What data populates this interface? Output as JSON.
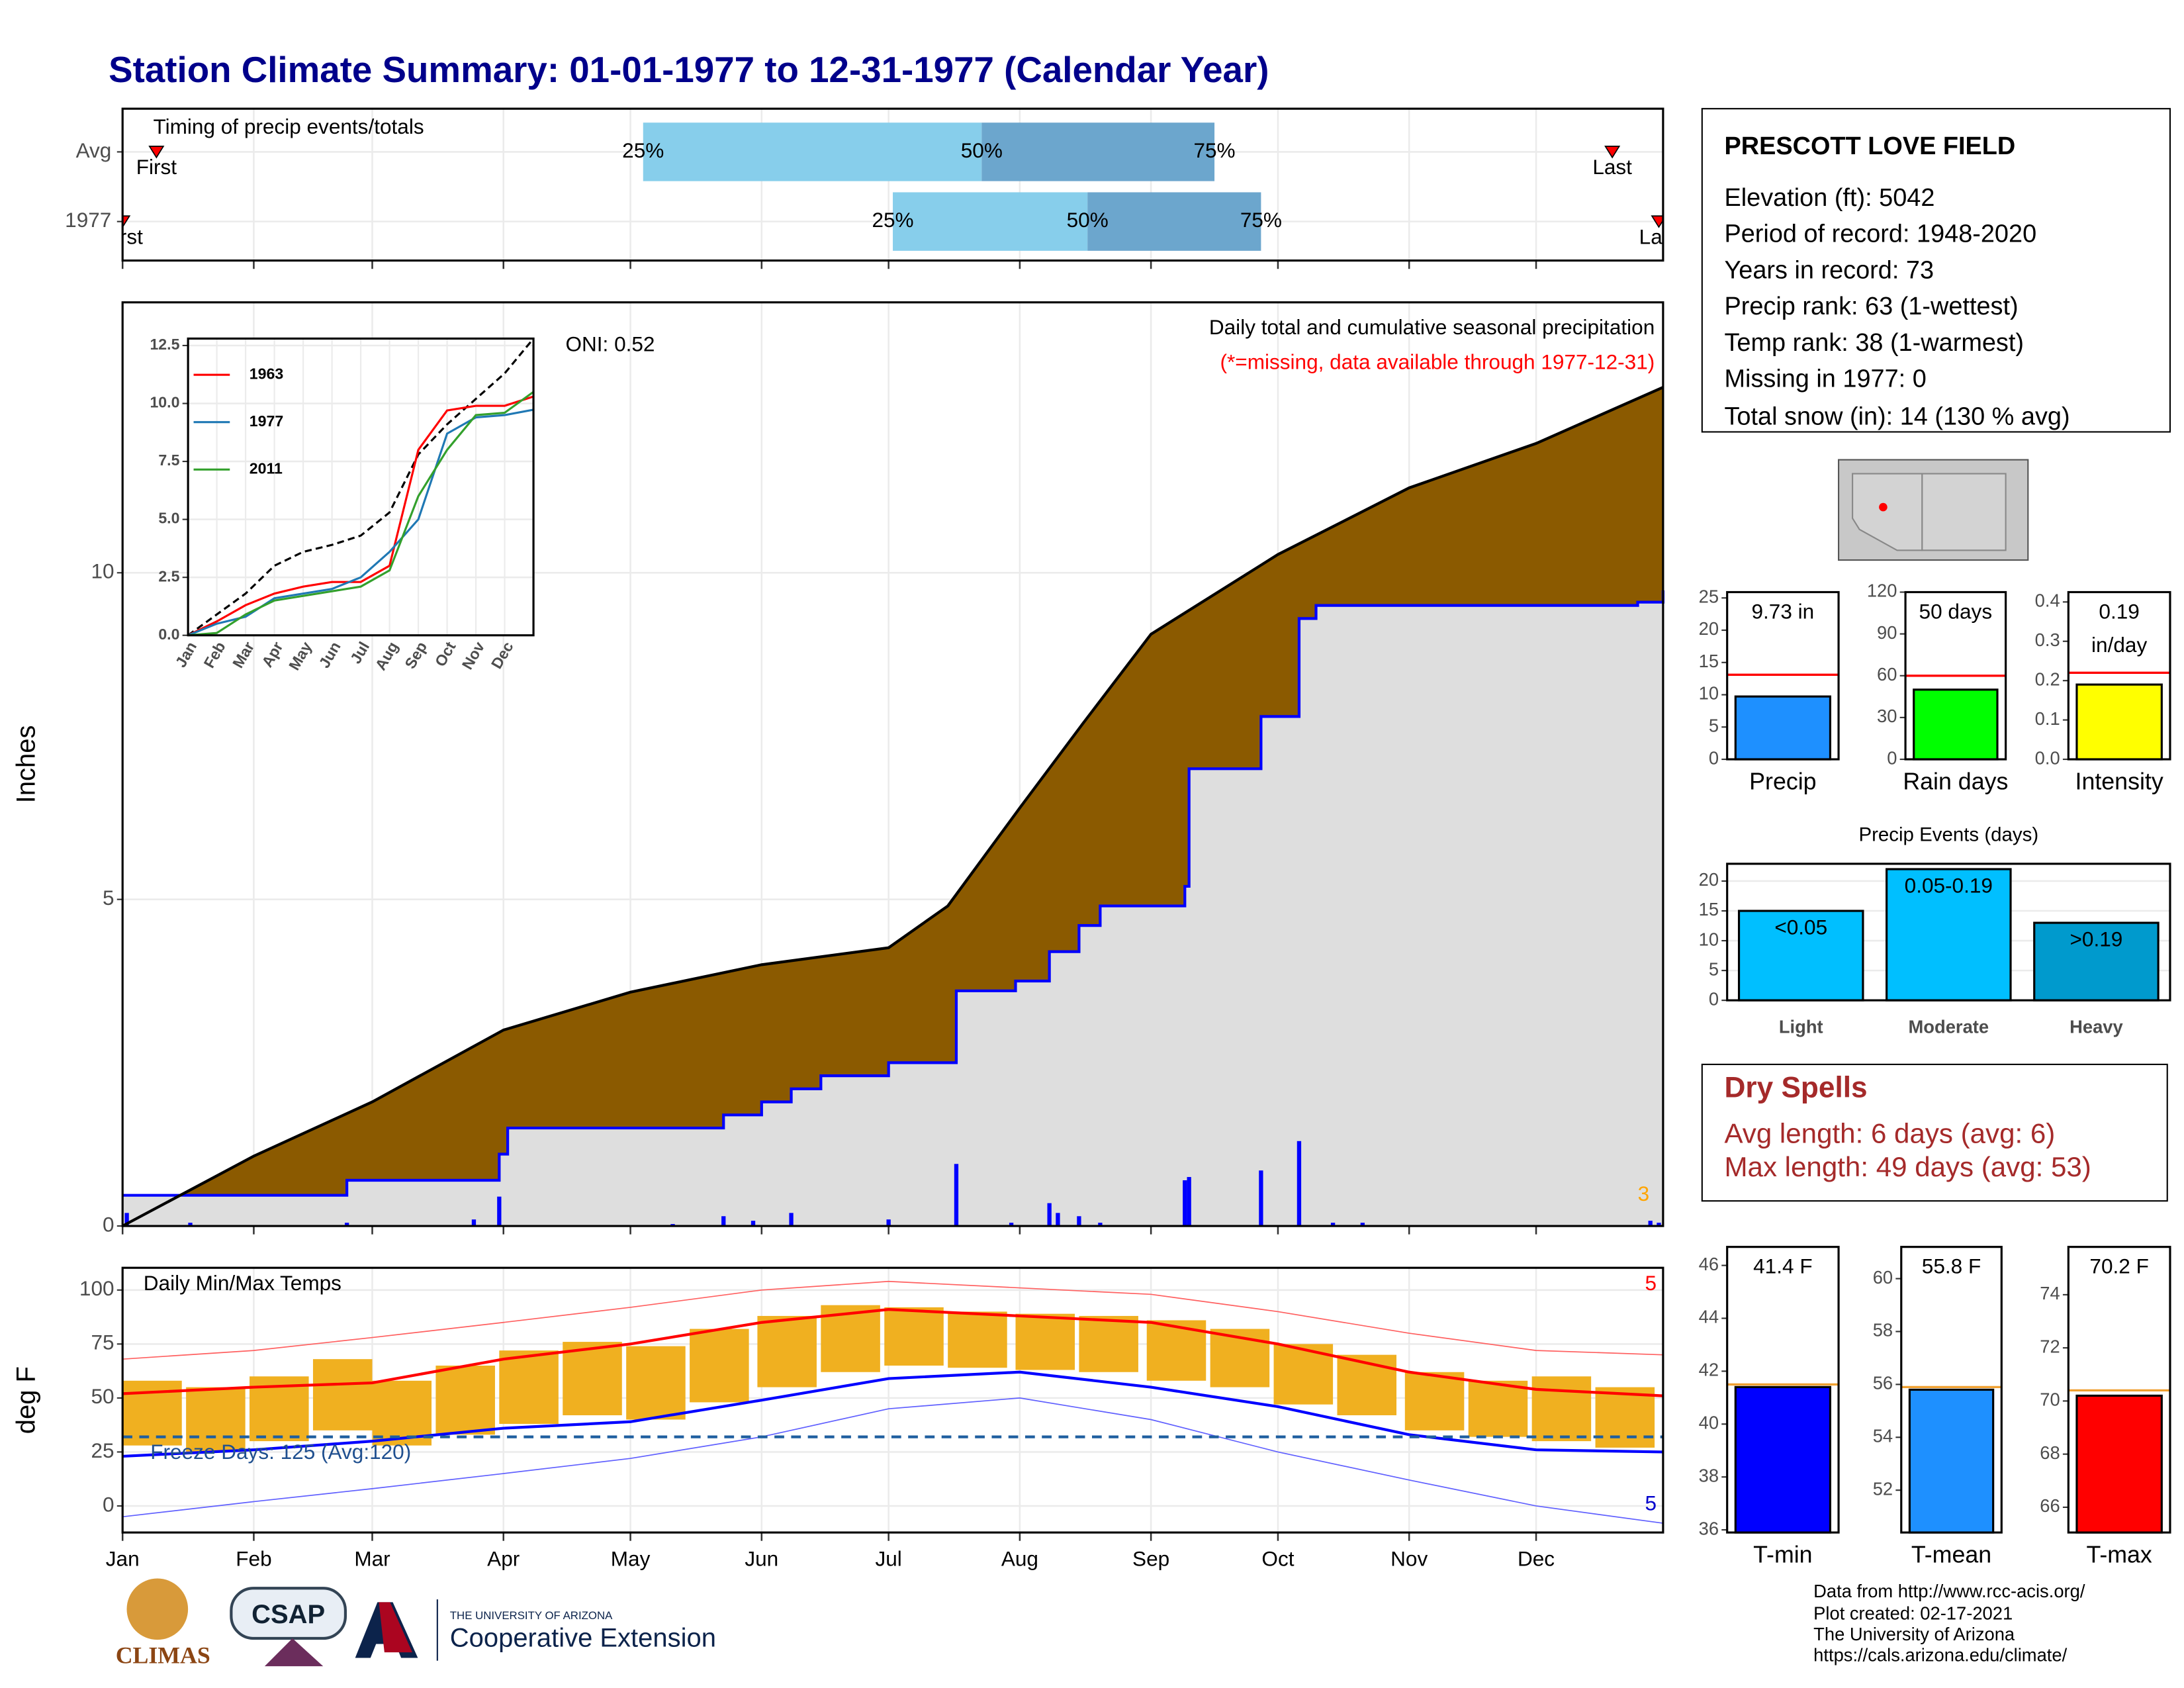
{
  "title": "Station Climate Summary: 01-01-1977 to 12-31-1977 (Calendar Year)",
  "chart_data": [
    {
      "type": "timing",
      "title": "Timing of precip events/totals",
      "xlim": [
        1,
        365
      ],
      "quantile_labels": [
        "25%",
        "50%",
        "75%"
      ],
      "colors": [
        "#87ceeb",
        "#6ca6cd"
      ],
      "marker_color": "#ff0000",
      "rows": [
        {
          "label": "Avg",
          "first": 9,
          "q25": 124,
          "q50": 204,
          "q75": 259,
          "last": 353,
          "first_label": "First",
          "last_label": "Last"
        },
        {
          "label": "1977",
          "first": 1,
          "q25": 183,
          "q50": 229,
          "q75": 270,
          "last": 364,
          "first_label": "First",
          "last_label": "Last"
        }
      ]
    },
    {
      "type": "area",
      "title": "Daily total and cumulative seasonal precipitation",
      "subtitle": "(*=missing, data available through 1977-12-31)",
      "oni": "ONI: 0.52",
      "note": "3",
      "ylabel": "Inches",
      "xlim": [
        1,
        365
      ],
      "ylim": [
        0,
        14.14
      ],
      "yticks": [
        0,
        5,
        10
      ],
      "grid": true,
      "series": [
        {
          "style": "area",
          "fill": "#8b5a00",
          "color": "#000000",
          "x": [
            1,
            32,
            60,
            91,
            121,
            152,
            182,
            196,
            213,
            228,
            244,
            274,
            305,
            335,
            365
          ],
          "values": [
            0,
            1.07,
            1.9,
            3.0,
            3.58,
            4.0,
            4.26,
            4.9,
            6.4,
            7.7,
            9.06,
            10.28,
            11.3,
            11.98,
            12.84
          ]
        },
        {
          "style": "step",
          "fill": "#dedede",
          "color": "#0000ff",
          "x": [
            1,
            54,
            90,
            92,
            143,
            152,
            159,
            166,
            182,
            198,
            212,
            220,
            227,
            232,
            252,
            253,
            270,
            279,
            283,
            359,
            365
          ],
          "values": [
            0.47,
            0.7,
            1.1,
            1.5,
            1.7,
            1.9,
            2.1,
            2.3,
            2.5,
            3.6,
            3.75,
            4.2,
            4.6,
            4.9,
            5.2,
            7.0,
            7.8,
            9.3,
            9.5,
            9.55,
            9.73
          ]
        },
        {
          "style": "bars",
          "color": "#0000ff",
          "x": [
            2,
            17,
            54,
            84,
            90,
            131,
            143,
            150,
            159,
            182,
            198,
            211,
            220,
            222,
            227,
            232,
            252,
            253,
            270,
            279,
            287,
            294,
            362,
            364
          ],
          "values": [
            0.2,
            0.05,
            0.05,
            0.1,
            0.45,
            0.03,
            0.15,
            0.08,
            0.2,
            0.1,
            0.95,
            0.05,
            0.35,
            0.2,
            0.15,
            0.05,
            0.7,
            0.75,
            0.85,
            1.3,
            0.05,
            0.05,
            0.08,
            0.05
          ]
        }
      ]
    },
    {
      "type": "line",
      "xlim": [
        0,
        12
      ],
      "ylim": [
        0,
        12.8
      ],
      "yticks": [
        {
          "value": 0,
          "label": "0.0"
        },
        2.5,
        {
          "value": 5,
          "label": "5.0"
        },
        7.5,
        {
          "value": 10,
          "label": "10.0"
        },
        12.5
      ],
      "xticks": [
        {
          "value": 0,
          "label": "Jan"
        },
        {
          "value": 1,
          "label": "Feb"
        },
        {
          "value": 2,
          "label": "Mar"
        },
        {
          "value": 3,
          "label": "Apr"
        },
        {
          "value": 4,
          "label": "May"
        },
        {
          "value": 5,
          "label": "Jun"
        },
        {
          "value": 6,
          "label": "Jul"
        },
        {
          "value": 7,
          "label": "Aug"
        },
        {
          "value": 8,
          "label": "Sep"
        },
        {
          "value": 9,
          "label": "Oct"
        },
        {
          "value": 10,
          "label": "Nov"
        },
        {
          "value": 11,
          "label": "Dec"
        }
      ],
      "x": [
        0,
        1,
        2,
        3,
        4,
        5,
        6,
        7,
        8,
        9,
        10,
        11,
        12
      ],
      "series": [
        {
          "color": "#000000",
          "dashed": true,
          "values": [
            0,
            0.9,
            1.8,
            3.0,
            3.6,
            3.9,
            4.3,
            5.3,
            7.8,
            9.1,
            10.2,
            11.3,
            12.8
          ]
        },
        {
          "name": "1963",
          "color": "#ff0000",
          "values": [
            0,
            0.6,
            1.3,
            1.8,
            2.1,
            2.3,
            2.3,
            3.0,
            8.0,
            9.7,
            9.9,
            9.9,
            10.3
          ]
        },
        {
          "name": "1977",
          "color": "#1f78b4",
          "values": [
            0,
            0.5,
            0.8,
            1.6,
            1.8,
            2.0,
            2.5,
            3.6,
            5.0,
            8.7,
            9.4,
            9.5,
            9.73
          ]
        },
        {
          "name": "2011",
          "color": "#33a02c",
          "values": [
            0,
            0.1,
            0.9,
            1.5,
            1.7,
            1.9,
            2.1,
            2.8,
            6.0,
            8.0,
            9.5,
            9.6,
            10.5
          ]
        }
      ]
    },
    {
      "type": "range",
      "title": "Daily Min/Max Temps",
      "freeze_label": "Freeze Days: 125 (Avg:120)",
      "high_note": "5",
      "low_note": "5",
      "ylabel": "deg F",
      "reference_line": 32,
      "xlim": [
        1,
        365
      ],
      "ylim": [
        -12.3,
        110.3
      ],
      "yticks": [
        0,
        25,
        50,
        75,
        100
      ],
      "grid": true,
      "xticks": [
        {
          "value": 1,
          "label": "Jan"
        },
        {
          "value": 32,
          "label": "Feb"
        },
        {
          "value": 60,
          "label": "Mar"
        },
        {
          "value": 91,
          "label": "Apr"
        },
        {
          "value": 121,
          "label": "May"
        },
        {
          "value": 152,
          "label": "Jun"
        },
        {
          "value": 182,
          "label": "Jul"
        },
        {
          "value": 213,
          "label": "Aug"
        },
        {
          "value": 244,
          "label": "Sep"
        },
        {
          "value": 274,
          "label": "Oct"
        },
        {
          "value": 305,
          "label": "Nov"
        },
        {
          "value": 335,
          "label": "Dec"
        }
      ],
      "bars": {
        "color": "#f0b020",
        "x": [
          8,
          23,
          38,
          53,
          67,
          82,
          97,
          112,
          127,
          142,
          158,
          173,
          188,
          203,
          219,
          234,
          250,
          265,
          280,
          295,
          311,
          326,
          341,
          356
        ],
        "low": [
          28,
          25,
          30,
          35,
          28,
          33,
          38,
          42,
          40,
          48,
          55,
          62,
          65,
          64,
          63,
          62,
          58,
          55,
          47,
          42,
          35,
          32,
          30,
          27
        ],
        "high": [
          58,
          55,
          60,
          68,
          58,
          65,
          72,
          76,
          74,
          82,
          88,
          93,
          92,
          90,
          89,
          88,
          86,
          82,
          75,
          70,
          62,
          58,
          60,
          55
        ]
      },
      "lines": [
        {
          "color": "#ff6060",
          "width": 0.8,
          "x": [
            1,
            32,
            60,
            91,
            121,
            152,
            182,
            213,
            244,
            274,
            305,
            335,
            365
          ],
          "values": [
            68,
            72,
            78,
            85,
            92,
            100,
            104,
            101,
            98,
            90,
            80,
            72,
            70
          ]
        },
        {
          "color": "#6060ff",
          "width": 0.8,
          "x": [
            1,
            32,
            60,
            91,
            121,
            152,
            182,
            213,
            244,
            274,
            305,
            335,
            365
          ],
          "values": [
            -5,
            2,
            8,
            15,
            22,
            32,
            45,
            50,
            40,
            25,
            12,
            0,
            -8
          ]
        },
        {
          "color": "#ff0000",
          "width": 2,
          "x": [
            1,
            32,
            60,
            91,
            121,
            152,
            182,
            213,
            244,
            274,
            305,
            335,
            365
          ],
          "values": [
            52,
            55,
            57,
            68,
            75,
            85,
            91,
            88,
            85,
            75,
            62,
            54,
            51
          ]
        },
        {
          "color": "#0000ff",
          "width": 2,
          "x": [
            1,
            32,
            60,
            91,
            121,
            152,
            182,
            213,
            244,
            274,
            305,
            335,
            365
          ],
          "values": [
            23,
            26,
            30,
            36,
            39,
            49,
            59,
            62,
            55,
            46,
            33,
            26,
            25
          ]
        }
      ]
    },
    {
      "type": "bar",
      "categories": [
        "Precip"
      ],
      "values": [
        9.73
      ],
      "value_labels": [
        "9.73 in"
      ],
      "avg": [
        13.1
      ],
      "avg_color": "#ff0000",
      "color": "#1e90ff",
      "ylim": [
        0,
        25.9
      ],
      "yticks": [
        0,
        5,
        10,
        15,
        20,
        25
      ]
    },
    {
      "type": "bar",
      "categories": [
        "Rain days"
      ],
      "values": [
        50
      ],
      "value_labels": [
        "50 days"
      ],
      "avg": [
        60
      ],
      "avg_color": "#ff0000",
      "color": "#00ff00",
      "ylim": [
        0,
        120
      ],
      "yticks": [
        0,
        30,
        60,
        90,
        120
      ]
    },
    {
      "type": "bar",
      "categories": [
        "Intensity"
      ],
      "values": [
        0.19
      ],
      "value_labels": [
        "0.19 in/day"
      ],
      "avg": [
        0.22
      ],
      "avg_color": "#ff0000",
      "color": "#ffff00",
      "ylim": [
        0,
        0.425
      ],
      "yticks": [
        {
          "value": 0,
          "label": "0.0"
        },
        0.1,
        0.2,
        0.3,
        0.4
      ]
    },
    {
      "type": "bar",
      "title": "Precip Events (days)",
      "categories": [
        "Light",
        "Moderate",
        "Heavy"
      ],
      "values": [
        15,
        22,
        13
      ],
      "range_labels": [
        "<0.05",
        "0.05-0.19",
        ">0.19"
      ],
      "colors": [
        "#00bfff",
        "#00bfff",
        "#009acd"
      ],
      "ylim": [
        0,
        22.9
      ],
      "yticks": [
        0,
        5,
        10,
        15,
        20
      ],
      "grid": true
    },
    {
      "type": "bar",
      "categories": [
        "T-min"
      ],
      "values": [
        41.4
      ],
      "value_labels": [
        "41.4 F"
      ],
      "avg": [
        41.5
      ],
      "avg_color": "#f0a030",
      "color": "#0000ff",
      "ylim": [
        35.9,
        46.7
      ],
      "yticks": [
        36,
        38,
        40,
        42,
        44,
        46
      ]
    },
    {
      "type": "bar",
      "categories": [
        "T-mean"
      ],
      "values": [
        55.8
      ],
      "value_labels": [
        "55.8 F"
      ],
      "avg": [
        55.9
      ],
      "avg_color": "#f0a030",
      "color": "#1e90ff",
      "ylim": [
        50.4,
        61.2
      ],
      "yticks": [
        52,
        54,
        56,
        58,
        60
      ]
    },
    {
      "type": "bar",
      "categories": [
        "T-max"
      ],
      "values": [
        70.2
      ],
      "value_labels": [
        "70.2 F"
      ],
      "avg": [
        70.4
      ],
      "avg_color": "#f0a030",
      "color": "#ff0000",
      "ylim": [
        65.05,
        75.8
      ],
      "yticks": [
        66,
        68,
        70,
        72,
        74
      ]
    }
  ],
  "station": {
    "name": "PRESCOTT LOVE FIELD",
    "lines": [
      "Elevation (ft): 5042",
      "Period of record: 1948-2020",
      "Years in record: 73",
      "Precip rank: 63 (1-wettest)",
      "Temp rank: 38 (1-warmest)",
      "Missing in 1977: 0",
      "Total snow (in): 14 (130 % avg)"
    ]
  },
  "dry_spells": {
    "title": "Dry Spells",
    "lines": [
      "Avg length: 6 days (avg: 6)",
      "Max length: 49 days (avg: 53)"
    ]
  },
  "footer": {
    "logos": [
      "CLIMAS",
      "CSAP",
      "THE UNIVERSITY OF ARIZONA",
      "Cooperative Extension"
    ],
    "credits": [
      "Data from http://www.rcc-acis.org/",
      "Plot created: 02-17-2021",
      "The University of Arizona",
      "https://cals.arizona.edu/climate/"
    ]
  }
}
